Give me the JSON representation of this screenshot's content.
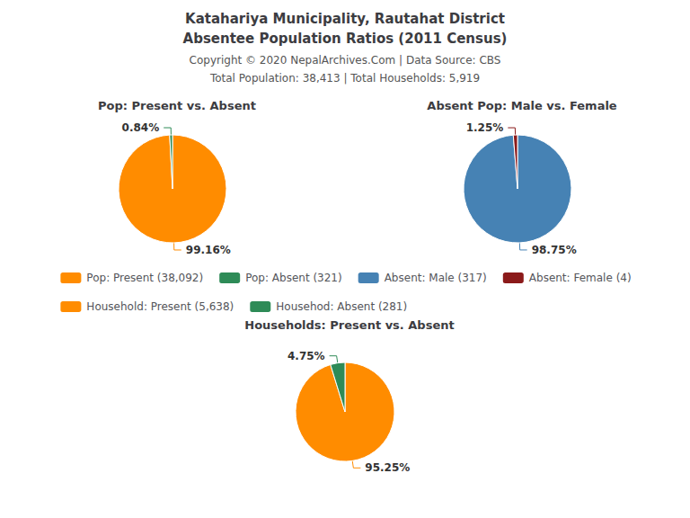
{
  "title": "Katahariya Municipality, Rautahat District",
  "subtitle": "Absentee Population Ratios (2011 Census)",
  "annotations": [
    "Copyright © 2020 NepalArchives.Com | Data Source: CBS",
    "Total Population: 38,413 | Total Households: 5,919"
  ],
  "legend": "center",
  "chart_data": [
    {
      "type": "pie",
      "title": "Pop: Present vs. Absent",
      "categories": [
        "Pop: Present (38,092)",
        "Pop: Absent (321)"
      ],
      "values": [
        99.16,
        0.84
      ],
      "value_labels": [
        "99.16%",
        "0.84%"
      ],
      "colors": [
        "#FF8C00",
        "#2E8B57"
      ]
    },
    {
      "type": "pie",
      "title": "Absent Pop: Male vs. Female",
      "categories": [
        "Absent: Male (317)",
        "Absent: Female (4)"
      ],
      "values": [
        98.75,
        1.25
      ],
      "value_labels": [
        "98.75%",
        "1.25%"
      ],
      "colors": [
        "#4682B4",
        "#8B1A1A"
      ]
    },
    {
      "type": "pie",
      "title": "Households: Present vs. Absent",
      "categories": [
        "Household: Present (5,638)",
        "Househod: Absent (281)"
      ],
      "values": [
        95.25,
        4.75
      ],
      "value_labels": [
        "95.25%",
        "4.75%"
      ],
      "colors": [
        "#FF8C00",
        "#2E8B57"
      ]
    }
  ]
}
